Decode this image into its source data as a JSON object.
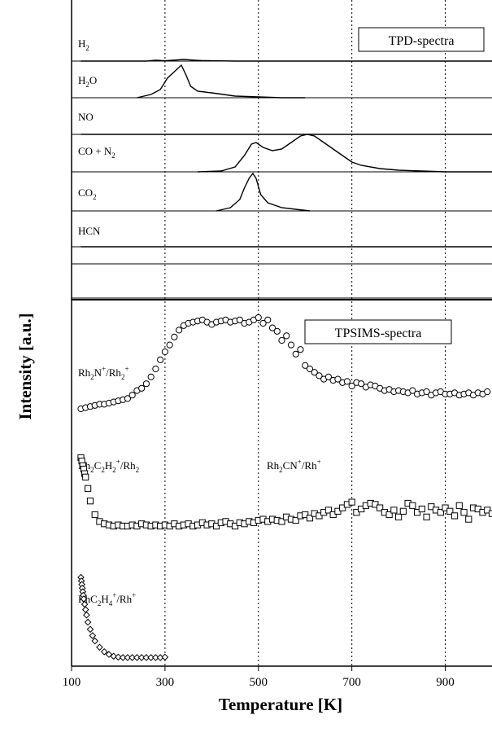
{
  "chart_data": [
    {
      "type": "line",
      "boxed_label": "TPD-spectra",
      "xlabel": "Temperature  [K]",
      "ylabel": "Intensity [a.u.]",
      "xlim": [
        100,
        1000
      ],
      "x_ticks": [
        100,
        300,
        500,
        700,
        900
      ],
      "x_tick_labels": [
        "100",
        "300",
        "500",
        "700",
        "900"
      ],
      "gridlines_x": [
        300,
        500,
        700,
        900
      ],
      "grid_style": "dotted vertical",
      "series": [
        {
          "name": "H",
          "sub": "2",
          "x": [
            120,
            260,
            280,
            300,
            320,
            340,
            360,
            380,
            400,
            450,
            500,
            700,
            1000
          ],
          "values": [
            0,
            0,
            0.5,
            0.2,
            0.6,
            1.0,
            0.6,
            0.3,
            0.2,
            0,
            0,
            0,
            0
          ]
        },
        {
          "name": "H",
          "sub": "2",
          "suffix": "O",
          "x": [
            240,
            270,
            290,
            305,
            320,
            335,
            345,
            355,
            370,
            400,
            450,
            500,
            550,
            600
          ],
          "values": [
            0,
            2,
            5,
            12,
            16,
            20,
            14,
            7,
            4,
            3,
            1,
            0.5,
            0,
            0
          ]
        },
        {
          "name": "NO",
          "x": [
            120,
            1000
          ],
          "values": [
            0,
            0
          ]
        },
        {
          "name": "CO + N",
          "sub": "2",
          "x": [
            370,
            420,
            450,
            470,
            485,
            495,
            510,
            530,
            550,
            570,
            590,
            605,
            620,
            640,
            660,
            680,
            700,
            720,
            760,
            800,
            850,
            900,
            950,
            1000
          ],
          "values": [
            0,
            0.5,
            3,
            10,
            17,
            18,
            15,
            13,
            14,
            18,
            22,
            23,
            22,
            18,
            14,
            10,
            6,
            4,
            2,
            1,
            0.5,
            0,
            0,
            0
          ]
        },
        {
          "name": "CO",
          "sub": "2",
          "x": [
            410,
            440,
            460,
            470,
            480,
            488,
            495,
            505,
            520,
            550,
            580,
            610
          ],
          "values": [
            0,
            2,
            7,
            14,
            20,
            23,
            20,
            10,
            5,
            2,
            1,
            0
          ]
        },
        {
          "name": "HCN",
          "x": [
            120,
            1000
          ],
          "values": [
            0,
            0
          ]
        }
      ]
    },
    {
      "type": "scatter",
      "boxed_label": "TPSIMS-spectra",
      "series": [
        {
          "name": "Rh",
          "sub": "2",
          "suffix": "N",
          "sup": "+",
          "tail": "/Rh",
          "tail_sub": "2",
          "tail_sup": "+",
          "marker": "circle",
          "x": [
            120,
            130,
            140,
            150,
            160,
            170,
            180,
            190,
            200,
            210,
            220,
            230,
            240,
            250,
            260,
            270,
            280,
            290,
            300,
            310,
            320,
            330,
            340,
            350,
            360,
            370,
            380,
            390,
            400,
            410,
            420,
            430,
            440,
            450,
            460,
            470,
            480,
            490,
            500,
            510,
            520,
            530,
            540,
            550,
            560,
            570,
            580,
            590,
            600,
            610,
            620,
            630,
            640,
            650,
            660,
            670,
            680,
            690,
            700,
            710,
            720,
            730,
            740,
            750,
            760,
            770,
            780,
            790,
            800,
            810,
            820,
            830,
            840,
            850,
            860,
            870,
            880,
            890,
            900,
            910,
            920,
            930,
            940,
            950,
            960,
            970,
            980,
            990
          ],
          "values": [
            0,
            0.1,
            0.2,
            0.3,
            0.4,
            0.4,
            0.5,
            0.6,
            0.7,
            0.8,
            0.9,
            1.2,
            1.6,
            1.8,
            2.2,
            2.8,
            3.5,
            4.3,
            5.0,
            5.6,
            6.3,
            6.9,
            7.3,
            7.5,
            7.6,
            7.7,
            7.8,
            7.6,
            7.4,
            7.6,
            7.7,
            7.8,
            7.6,
            7.7,
            7.8,
            7.5,
            7.6,
            7.8,
            8.0,
            7.5,
            7.8,
            7.1,
            6.8,
            6.0,
            6.4,
            5.6,
            4.8,
            5.2,
            3.8,
            3.5,
            3.2,
            2.9,
            2.6,
            2.8,
            2.5,
            2.6,
            2.3,
            2.4,
            2.0,
            2.3,
            2.2,
            1.9,
            2.1,
            2.0,
            1.8,
            1.6,
            1.7,
            1.5,
            1.6,
            1.5,
            1.4,
            1.6,
            1.3,
            1.4,
            1.5,
            1.2,
            1.4,
            1.5,
            1.3,
            1.3,
            1.4,
            1.2,
            1.3,
            1.4,
            1.2,
            1.4,
            1.3,
            1.5
          ]
        },
        {
          "name": "Rh",
          "sub": "2",
          "suffix": "C",
          "sub2": "2",
          "suffix2": "H",
          "sub3": "2",
          "sup": "+",
          "tail": "/Rh",
          "tail_sub": "2",
          "marker": "square",
          "x": [
            120,
            122,
            124,
            126,
            128,
            130,
            135,
            140,
            150,
            160,
            170,
            180,
            190,
            200,
            210,
            220,
            230,
            240,
            250,
            260,
            270,
            280,
            290,
            300,
            310,
            320,
            330,
            340,
            350,
            360,
            370,
            380,
            390,
            400,
            410,
            420,
            430,
            440,
            450,
            460,
            470,
            480,
            490,
            500,
            510,
            520,
            530,
            540,
            550,
            560,
            570,
            580,
            590,
            600,
            610,
            620,
            630,
            640,
            650,
            660,
            670,
            680,
            690,
            700,
            710,
            720,
            730,
            740,
            750,
            760,
            770,
            780,
            790,
            800,
            810,
            820,
            830,
            840,
            850,
            860,
            870,
            880,
            890,
            900,
            910,
            920,
            930,
            940,
            950,
            960,
            970,
            980,
            990,
            1000
          ],
          "values": [
            7.0,
            6.7,
            6.3,
            6.0,
            5.6,
            5.3,
            4.3,
            3.2,
            2.0,
            1.4,
            1.2,
            1.1,
            1.0,
            1.1,
            1.0,
            1.0,
            1.1,
            1.0,
            1.2,
            1.1,
            1.0,
            1.1,
            1.0,
            1.1,
            1.0,
            1.2,
            1.0,
            1.1,
            1.2,
            1.0,
            1.1,
            1.3,
            1.1,
            1.2,
            1.0,
            1.3,
            1.4,
            1.2,
            1.0,
            1.3,
            1.2,
            1.4,
            1.3,
            1.5,
            1.6,
            1.4,
            1.6,
            1.5,
            1.4,
            1.8,
            1.6,
            1.5,
            1.9,
            2.0,
            1.7,
            2.1,
            1.9,
            2.2,
            2.4,
            2.0,
            2.3,
            2.6,
            2.9,
            3.1,
            2.2,
            2.5,
            2.8,
            3.0,
            2.9,
            2.6,
            2.2,
            2.0,
            2.4,
            1.8,
            2.3,
            3.0,
            2.8,
            2.2,
            2.5,
            1.8,
            2.7,
            2.4,
            2.2,
            2.6,
            2.3,
            1.9,
            2.8,
            2.2,
            1.6,
            2.6,
            2.5,
            2.2,
            2.4,
            2.1
          ]
        },
        {
          "name": "RhC",
          "sub": "2",
          "suffix": "H",
          "sub2": "4",
          "sup": "+",
          "tail": "/Rh",
          "tail_sup": "+",
          "marker": "diamond",
          "x": [
            120,
            121,
            122,
            123,
            124,
            125,
            126,
            128,
            130,
            132,
            135,
            140,
            145,
            150,
            160,
            170,
            180,
            190,
            200,
            210,
            220,
            230,
            240,
            250,
            260,
            270,
            280,
            290,
            300
          ],
          "values": [
            9.0,
            8.6,
            8.2,
            7.8,
            7.4,
            7.0,
            6.6,
            6.0,
            5.4,
            4.8,
            4.0,
            3.2,
            2.5,
            1.9,
            1.2,
            0.7,
            0.4,
            0.2,
            0.1,
            0.05,
            0.05,
            0.05,
            0.05,
            0.05,
            0.05,
            0.05,
            0.05,
            0.05,
            0.1
          ]
        }
      ]
    },
    {
      "annotation_label": "Rh",
      "annotation_sub": "2",
      "annotation_suffix": "CN",
      "annotation_sup": "+",
      "annotation_tail": "/Rh",
      "annotation_tail_sup": "+"
    }
  ]
}
